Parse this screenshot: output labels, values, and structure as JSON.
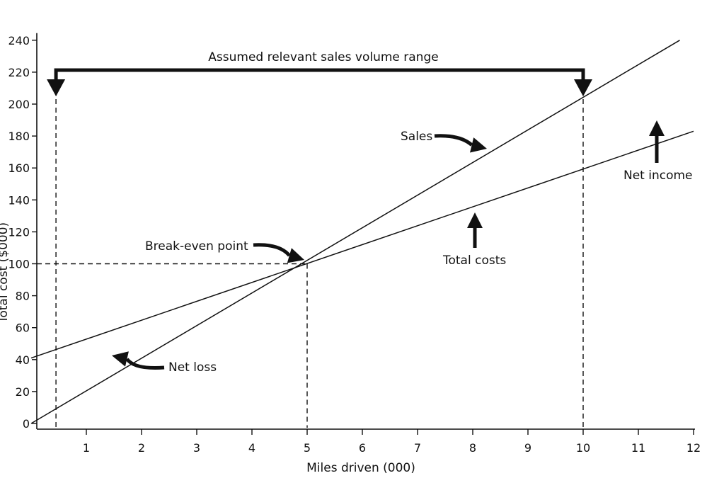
{
  "chart_data": {
    "type": "line",
    "title": "",
    "xlabel": "Miles driven (000)",
    "ylabel": "Total cost ($000)",
    "xlim": [
      0,
      12
    ],
    "ylim": [
      0,
      240
    ],
    "x_ticks": [
      1,
      2,
      3,
      4,
      5,
      6,
      7,
      8,
      9,
      10,
      11,
      12
    ],
    "y_ticks": [
      0,
      20,
      40,
      60,
      80,
      100,
      120,
      140,
      160,
      180,
      200,
      220,
      240
    ],
    "grid": false,
    "series": [
      {
        "name": "Sales",
        "x": [
          0,
          11.75
        ],
        "y": [
          0,
          240
        ]
      },
      {
        "name": "Total costs",
        "x": [
          0,
          12
        ],
        "y": [
          41,
          183
        ]
      }
    ],
    "break_even": {
      "x": 5,
      "y": 100
    },
    "relevant_range": {
      "x_start": 0.45,
      "x_end": 10
    },
    "annotations": {
      "range_label": "Assumed relevant sales volume range",
      "sales": "Sales",
      "break_even": "Break-even point",
      "total_costs": "Total costs",
      "net_income": "Net income",
      "net_loss": "Net loss"
    }
  }
}
